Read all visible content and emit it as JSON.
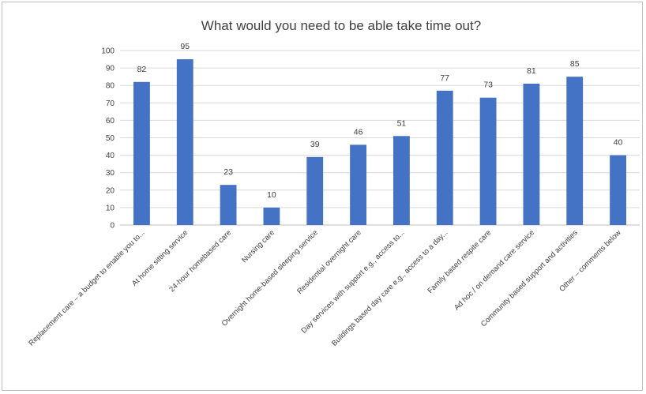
{
  "chart_data": {
    "type": "bar",
    "title": "What would you need to be able take time out?",
    "categories": [
      "Replacement care – a budget to enable you to...",
      "At home sitting service",
      "24-hour homebased care",
      "Nursing care",
      "Overnight home-based sleeping service",
      "Residential overnight care",
      "Day services with support e.g., access to...",
      "Buildings based day care e.g., access to a day...",
      "Family based respite care",
      "Ad hoc / on demand care service",
      "Community based support and activities",
      "Other – comments below"
    ],
    "values": [
      82,
      95,
      23,
      10,
      39,
      46,
      51,
      77,
      73,
      81,
      85,
      40
    ],
    "ylim": [
      0,
      100
    ],
    "yticks": [
      0,
      10,
      20,
      30,
      40,
      50,
      60,
      70,
      80,
      90,
      100
    ],
    "grid": true,
    "legend": "none",
    "bar_color": "#4472c4",
    "grid_color": "#d9d9d9"
  }
}
